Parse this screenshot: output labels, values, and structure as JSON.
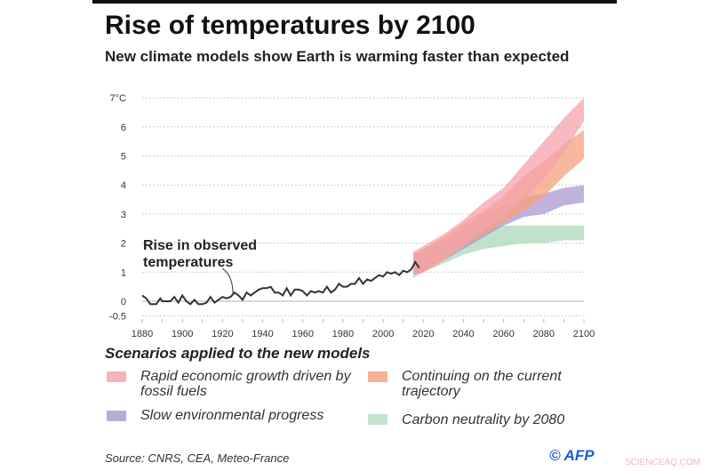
{
  "title": "Rise of temperatures by 2100",
  "subtitle": "New climate models show Earth is warming faster than expected",
  "legend_title": "Scenarios applied to the new models",
  "source": "Source: CNRS, CEA, Meteo-France",
  "credit": "© AFP",
  "watermark": "SCIENCEAQ.COM",
  "chart_data": {
    "type": "area",
    "xlim": [
      1880,
      2100
    ],
    "ylim": [
      -0.5,
      7
    ],
    "x_ticks": [
      "1880",
      "1900",
      "1920",
      "1940",
      "1960",
      "1980",
      "2000",
      "2020",
      "2040",
      "2060",
      "2080",
      "2100"
    ],
    "y_ticks": [
      {
        "v": 7,
        "label": "7°C"
      },
      {
        "v": 6,
        "label": "6"
      },
      {
        "v": 5,
        "label": "5"
      },
      {
        "v": 4,
        "label": "4"
      },
      {
        "v": 3,
        "label": "3"
      },
      {
        "v": 2,
        "label": "2"
      },
      {
        "v": 1,
        "label": "1"
      },
      {
        "v": 0,
        "label": "0"
      },
      {
        "v": -0.5,
        "label": "-0.5"
      }
    ],
    "grid": true,
    "annotation": {
      "line1": "Rise in observed",
      "line2": "temperatures"
    },
    "observed": {
      "x": [
        1880,
        1882,
        1884,
        1885,
        1887,
        1889,
        1890,
        1892,
        1894,
        1896,
        1898,
        1900,
        1902,
        1904,
        1906,
        1908,
        1910,
        1912,
        1914,
        1916,
        1918,
        1920,
        1922,
        1924,
        1926,
        1928,
        1930,
        1932,
        1934,
        1936,
        1938,
        1940,
        1942,
        1944,
        1946,
        1948,
        1950,
        1952,
        1954,
        1956,
        1958,
        1960,
        1962,
        1964,
        1966,
        1968,
        1970,
        1972,
        1974,
        1976,
        1978,
        1980,
        1982,
        1984,
        1986,
        1988,
        1990,
        1992,
        1994,
        1996,
        1998,
        2000,
        2002,
        2004,
        2006,
        2008,
        2010,
        2012,
        2014,
        2016,
        2018
      ],
      "y": [
        0.2,
        0.1,
        -0.1,
        -0.1,
        -0.1,
        0.1,
        0,
        0,
        0,
        0.15,
        -0.05,
        0.2,
        0,
        -0.1,
        0.05,
        -0.1,
        -0.1,
        -0.05,
        0.15,
        -0.05,
        0.05,
        0.15,
        0.1,
        0.15,
        0.3,
        0.2,
        0.05,
        0.3,
        0.2,
        0.3,
        0.4,
        0.45,
        0.45,
        0.5,
        0.3,
        0.3,
        0.2,
        0.45,
        0.2,
        0.4,
        0.4,
        0.35,
        0.2,
        0.35,
        0.3,
        0.35,
        0.3,
        0.5,
        0.3,
        0.4,
        0.6,
        0.5,
        0.5,
        0.6,
        0.6,
        0.8,
        0.6,
        0.75,
        0.7,
        0.8,
        0.9,
        0.85,
        1.0,
        0.95,
        1.0,
        0.9,
        1.05,
        1.0,
        1.1,
        1.35,
        1.15
      ]
    },
    "series": [
      {
        "name": "Rapid economic growth driven by fossil fuels",
        "color": "#f5a3ab",
        "x": [
          2015,
          2020,
          2030,
          2040,
          2050,
          2060,
          2070,
          2080,
          2090,
          2100
        ],
        "lower": [
          0.9,
          1.0,
          1.4,
          1.9,
          2.4,
          2.9,
          3.5,
          4.2,
          5.1,
          6.2
        ],
        "upper": [
          1.7,
          1.9,
          2.3,
          2.8,
          3.4,
          3.9,
          4.7,
          5.5,
          6.3,
          7.0
        ]
      },
      {
        "name": "Continuing on the current trajectory",
        "color": "#f6a07c",
        "x": [
          2015,
          2020,
          2030,
          2040,
          2050,
          2060,
          2070,
          2080,
          2090,
          2100
        ],
        "lower": [
          0.9,
          1.0,
          1.4,
          1.9,
          2.3,
          2.7,
          3.1,
          3.6,
          4.3,
          4.9
        ],
        "upper": [
          1.6,
          1.8,
          2.2,
          2.7,
          3.1,
          3.6,
          4.3,
          4.8,
          5.4,
          5.9
        ]
      },
      {
        "name": "Slow environmental progress",
        "color": "#a99ad0",
        "x": [
          2015,
          2020,
          2030,
          2040,
          2050,
          2060,
          2070,
          2080,
          2090,
          2100
        ],
        "lower": [
          0.9,
          1.0,
          1.4,
          1.8,
          2.2,
          2.6,
          2.9,
          3.0,
          3.3,
          3.4
        ],
        "upper": [
          1.6,
          1.8,
          2.1,
          2.5,
          3.0,
          3.3,
          3.6,
          3.7,
          3.9,
          4.0
        ]
      },
      {
        "name": "Carbon neutrality by 2080",
        "color": "#a9d8b9",
        "x": [
          2015,
          2020,
          2030,
          2040,
          2050,
          2060,
          2070,
          2080,
          2090,
          2100
        ],
        "lower": [
          0.8,
          1.0,
          1.3,
          1.6,
          1.8,
          1.9,
          2.0,
          2.0,
          2.1,
          2.1
        ],
        "upper": [
          1.5,
          1.7,
          2.0,
          2.3,
          2.5,
          2.6,
          2.6,
          2.6,
          2.6,
          2.6
        ]
      }
    ]
  }
}
